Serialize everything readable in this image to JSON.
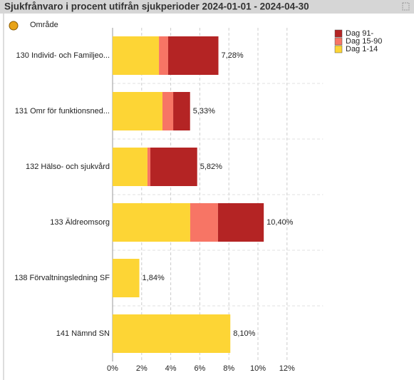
{
  "chart_data": {
    "type": "stacked_barh",
    "title": "Sjukfrånvaro i procent utifrån sjukperioder 2024-01-01 - 2024-04-30",
    "dimension_label": "Område",
    "categories": [
      "130 Individ- och Familjeo...",
      "131 Omr för funktionsned...",
      "132 Hälso- och sjukvård",
      "133 Äldreomsorg",
      "138 Förvaltningsledning SF",
      "141 Nämnd SN"
    ],
    "series": [
      {
        "name": "Dag 1-14",
        "color": "#fdd535",
        "values": [
          3.19,
          3.43,
          2.4,
          5.34,
          1.84,
          8.1
        ]
      },
      {
        "name": "Dag 15-90",
        "color": "#f77565",
        "values": [
          0.63,
          0.74,
          0.2,
          1.91,
          0,
          0
        ]
      },
      {
        "name": "Dag 91-",
        "color": "#b42424",
        "values": [
          3.46,
          1.16,
          3.22,
          3.15,
          0,
          0
        ]
      }
    ],
    "totals": [
      7.28,
      5.33,
      5.82,
      10.4,
      1.84,
      8.1
    ],
    "total_labels": [
      "7,28%",
      "5,33%",
      "5,82%",
      "10,40%",
      "1,84%",
      "8,10%"
    ],
    "xlim": [
      0,
      13.5
    ],
    "xticks": [
      {
        "value": 0,
        "label": "0%"
      },
      {
        "value": 2,
        "label": "2%"
      },
      {
        "value": 4,
        "label": "4%"
      },
      {
        "value": 6,
        "label": "6%"
      },
      {
        "value": 8,
        "label": "8%"
      },
      {
        "value": 10,
        "label": "10%"
      },
      {
        "value": 12,
        "label": "12%"
      }
    ],
    "grid": true,
    "legend": "top-right"
  }
}
